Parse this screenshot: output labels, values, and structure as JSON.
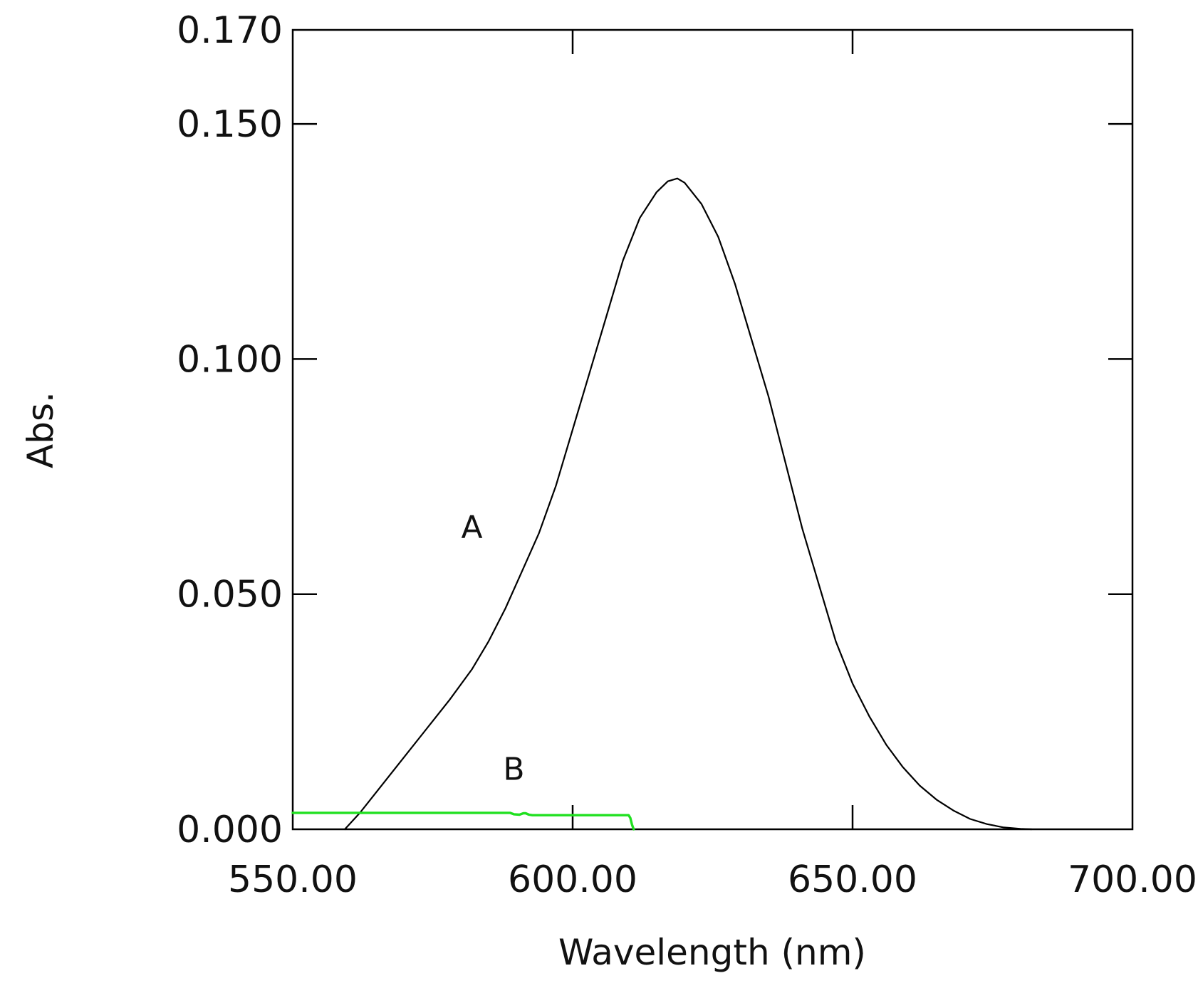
{
  "chart_data": {
    "type": "line",
    "title": "",
    "xlabel": "Wavelength (nm)",
    "ylabel": "Abs.",
    "xlim": [
      550,
      700
    ],
    "ylim": [
      0,
      0.17
    ],
    "grid": false,
    "legend": "none",
    "x_ticks": [
      "550.00",
      "600.00",
      "650.00",
      "700.00"
    ],
    "x_tick_values": [
      550,
      600,
      650,
      700
    ],
    "y_ticks": [
      "0.000",
      "0.050",
      "0.100",
      "0.150",
      "0.170"
    ],
    "y_tick_values": [
      0,
      0.05,
      0.1,
      0.15,
      0.17
    ],
    "series": [
      {
        "name": "A",
        "color": "#000000",
        "label_at": [
          582,
          0.062
        ],
        "x": [
          559.3,
          562,
          566,
          570,
          574,
          578,
          582,
          585,
          588,
          591,
          594,
          597,
          600,
          603,
          606,
          609,
          612,
          615,
          617,
          618.7,
          620,
          623,
          626,
          629,
          632,
          635,
          638,
          641,
          644,
          647,
          650,
          653,
          656,
          659,
          662,
          665,
          668,
          671,
          674,
          677,
          680,
          682
        ],
        "values": [
          0.0,
          0.0035,
          0.0095,
          0.0155,
          0.0215,
          0.0275,
          0.034,
          0.04,
          0.047,
          0.055,
          0.063,
          0.073,
          0.085,
          0.097,
          0.109,
          0.121,
          0.13,
          0.1355,
          0.1378,
          0.1384,
          0.1375,
          0.133,
          0.126,
          0.116,
          0.104,
          0.092,
          0.078,
          0.064,
          0.052,
          0.04,
          0.031,
          0.024,
          0.018,
          0.0132,
          0.0093,
          0.0063,
          0.004,
          0.0022,
          0.0011,
          0.0004,
          0.0001,
          0.0
        ]
      },
      {
        "name": "B",
        "color": "#1fe01f",
        "label_at": [
          589.5,
          0.0105
        ],
        "x": [
          550,
          560,
          570,
          580,
          588.8,
          589.5,
          590.5,
          591.2,
          591.6,
          592.2,
          592.8,
          600,
          605,
          610,
          610.3,
          610.6,
          610.9
        ],
        "values": [
          0.0035,
          0.0035,
          0.0035,
          0.0035,
          0.0035,
          0.0032,
          0.0031,
          0.0034,
          0.0034,
          0.0031,
          0.003,
          0.003,
          0.003,
          0.003,
          0.0024,
          0.001,
          0.0
        ]
      }
    ]
  }
}
